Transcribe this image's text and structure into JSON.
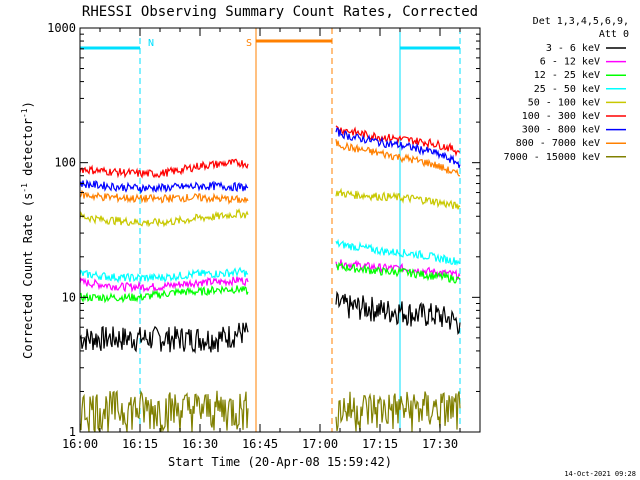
{
  "chart_data": {
    "type": "line",
    "title": "RHESSI Observing Summary Count Rates, Corrected",
    "xlabel": "Start Time (20-Apr-08 15:59:42)",
    "ylabel_main": "Corrected Count Rate (s",
    "ylabel_sup1": "-1",
    "ylabel_mid": " detector",
    "ylabel_sup2": "-1",
    "ylabel_end": ")",
    "yscale": "log",
    "xlim": [
      "16:00",
      "17:40"
    ],
    "ylim": [
      1,
      1000
    ],
    "x_ticks": [
      "16:00",
      "16:15",
      "16:30",
      "16:45",
      "17:00",
      "17:15",
      "17:30"
    ],
    "y_ticks": [
      {
        "label": "1000",
        "value": 1000
      },
      {
        "label": "100",
        "value": 100
      },
      {
        "label": "10",
        "value": 10
      },
      {
        "label": "1",
        "value": 1
      }
    ],
    "legend_title": [
      "Det 1,3,4,5,6,9,",
      "Att 0"
    ],
    "legend_position": "right",
    "timestamp": "14-Oct-2021 09:28",
    "series": [
      {
        "name": "3 - 6 keV",
        "color": "#000000",
        "segments": [
          {
            "t": [
              "16:00",
              "16:05",
              "16:10",
              "16:15",
              "16:20",
              "16:25",
              "16:30",
              "16:35",
              "16:40",
              "16:42"
            ],
            "y": [
              5,
              5,
              5,
              5,
              5,
              5,
              5,
              5,
              5.5,
              5.5
            ]
          },
          {
            "t": [
              "17:04",
              "17:08",
              "17:12",
              "17:16",
              "17:20",
              "17:24",
              "17:28",
              "17:32",
              "17:35"
            ],
            "y": [
              9,
              8.5,
              8.5,
              8,
              8,
              7.5,
              7.5,
              7,
              6.5
            ]
          }
        ]
      },
      {
        "name": "6 - 12 keV",
        "color": "#ff00ff",
        "segments": [
          {
            "t": [
              "16:00",
              "16:05",
              "16:10",
              "16:15",
              "16:20",
              "16:25",
              "16:30",
              "16:35",
              "16:40",
              "16:42"
            ],
            "y": [
              13,
              12.5,
              12,
              12,
              12,
              12.5,
              13,
              13,
              13.5,
              13
            ]
          },
          {
            "t": [
              "17:04",
              "17:08",
              "17:12",
              "17:16",
              "17:20",
              "17:24",
              "17:28",
              "17:32",
              "17:35"
            ],
            "y": [
              18,
              17.5,
              17,
              16.5,
              16.5,
              16,
              15.5,
              15,
              14.5
            ]
          }
        ]
      },
      {
        "name": "12 - 25 keV",
        "color": "#00ff00",
        "segments": [
          {
            "t": [
              "16:00",
              "16:05",
              "16:10",
              "16:15",
              "16:20",
              "16:25",
              "16:30",
              "16:35",
              "16:40",
              "16:42"
            ],
            "y": [
              10,
              10,
              10,
              10,
              10.5,
              11,
              11,
              11.5,
              11.5,
              11
            ]
          },
          {
            "t": [
              "17:04",
              "17:08",
              "17:12",
              "17:16",
              "17:20",
              "17:24",
              "17:28",
              "17:32",
              "17:35"
            ],
            "y": [
              17,
              16.5,
              16,
              15.5,
              15.5,
              15,
              14.5,
              14,
              13.5
            ]
          }
        ]
      },
      {
        "name": "25 - 50 keV",
        "color": "#00ffff",
        "segments": [
          {
            "t": [
              "16:00",
              "16:05",
              "16:10",
              "16:15",
              "16:20",
              "16:25",
              "16:30",
              "16:35",
              "16:40",
              "16:42"
            ],
            "y": [
              15,
              14.5,
              14,
              14,
              14,
              14.5,
              15,
              15,
              15.5,
              15
            ]
          },
          {
            "t": [
              "17:04",
              "17:08",
              "17:12",
              "17:16",
              "17:20",
              "17:24",
              "17:28",
              "17:32",
              "17:35"
            ],
            "y": [
              25,
              24,
              23,
              22,
              21.5,
              21,
              20,
              19,
              18.5
            ]
          }
        ]
      },
      {
        "name": "50 - 100 keV",
        "color": "#c8c800",
        "segments": [
          {
            "t": [
              "16:00",
              "16:05",
              "16:10",
              "16:15",
              "16:20",
              "16:25",
              "16:30",
              "16:35",
              "16:40",
              "16:42"
            ],
            "y": [
              40,
              38,
              37,
              36,
              36,
              37,
              39,
              40,
              42,
              41
            ]
          },
          {
            "t": [
              "17:04",
              "17:08",
              "17:12",
              "17:16",
              "17:20",
              "17:24",
              "17:28",
              "17:32",
              "17:35"
            ],
            "y": [
              60,
              58,
              57,
              56,
              55,
              54,
              52,
              49,
              47
            ]
          }
        ]
      },
      {
        "name": "100 - 300 keV",
        "color": "#ff0000",
        "segments": [
          {
            "t": [
              "16:00",
              "16:05",
              "16:10",
              "16:15",
              "16:20",
              "16:25",
              "16:30",
              "16:35",
              "16:40",
              "16:42"
            ],
            "y": [
              90,
              87,
              85,
              83,
              83,
              88,
              95,
              98,
              100,
              98
            ]
          },
          {
            "t": [
              "17:04",
              "17:08",
              "17:12",
              "17:16",
              "17:20",
              "17:24",
              "17:28",
              "17:32",
              "17:35"
            ],
            "y": [
              180,
              170,
              160,
              155,
              150,
              145,
              140,
              130,
              120
            ]
          }
        ]
      },
      {
        "name": "300 - 800 keV",
        "color": "#0000ff",
        "segments": [
          {
            "t": [
              "16:00",
              "16:05",
              "16:10",
              "16:15",
              "16:20",
              "16:25",
              "16:30",
              "16:35",
              "16:40",
              "16:42"
            ],
            "y": [
              70,
              68,
              66,
              65,
              65,
              66,
              67,
              67,
              66,
              65
            ]
          },
          {
            "t": [
              "17:04",
              "17:08",
              "17:12",
              "17:16",
              "17:20",
              "17:24",
              "17:28",
              "17:32",
              "17:35"
            ],
            "y": [
              170,
              155,
              148,
              140,
              135,
              128,
              120,
              108,
              97
            ]
          }
        ]
      },
      {
        "name": "800 - 7000 keV",
        "color": "#ff8000",
        "segments": [
          {
            "t": [
              "16:00",
              "16:05",
              "16:10",
              "16:15",
              "16:20",
              "16:25",
              "16:30",
              "16:35",
              "16:40",
              "16:42"
            ],
            "y": [
              58,
              56,
              55,
              54,
              54,
              55,
              55,
              54,
              53,
              52
            ]
          },
          {
            "t": [
              "17:04",
              "17:08",
              "17:12",
              "17:16",
              "17:20",
              "17:24",
              "17:28",
              "17:32",
              "17:35"
            ],
            "y": [
              140,
              128,
              122,
              116,
              110,
              104,
              98,
              88,
              80
            ]
          }
        ]
      },
      {
        "name": "7000 - 15000 keV",
        "color": "#808000",
        "segments": [
          {
            "t": [
              "16:00",
              "16:05",
              "16:10",
              "16:15",
              "16:20",
              "16:25",
              "16:30",
              "16:35",
              "16:40",
              "16:42"
            ],
            "y": [
              1.5,
              1.5,
              1.5,
              1.5,
              1.5,
              1.5,
              1.5,
              1.5,
              1.5,
              1.5
            ]
          },
          {
            "t": [
              "17:04",
              "17:08",
              "17:12",
              "17:16",
              "17:20",
              "17:24",
              "17:28",
              "17:32",
              "17:35"
            ],
            "y": [
              1.5,
              1.5,
              1.5,
              1.5,
              1.5,
              1.5,
              1.5,
              1.5,
              1.5
            ]
          }
        ]
      }
    ],
    "annotations": [
      {
        "label": "N",
        "color": "#00e0ff",
        "bars": [
          [
            "16:00",
            "16:15"
          ],
          [
            "17:20",
            "17:35"
          ]
        ],
        "lines": [
          "16:00",
          "16:15",
          "17:20",
          "17:35"
        ]
      },
      {
        "label": "S",
        "color": "#ff8000",
        "bars": [
          [
            "16:44",
            "17:03"
          ]
        ],
        "lines": [
          "16:44",
          "17:03"
        ]
      }
    ]
  }
}
